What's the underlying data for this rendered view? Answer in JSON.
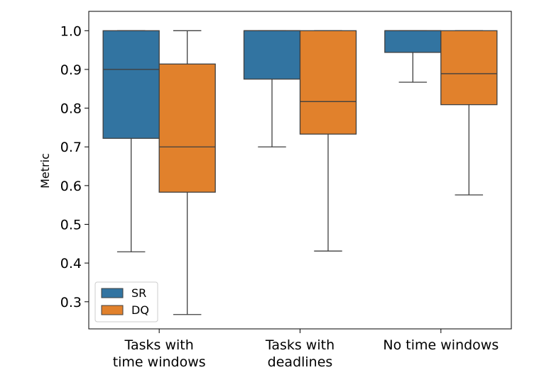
{
  "chart_data": {
    "type": "box",
    "ylabel": "Metric",
    "xlabel": "",
    "ylim": [
      0.23,
      1.05
    ],
    "yticks": [
      0.3,
      0.4,
      0.5,
      0.6,
      0.7,
      0.8,
      0.9,
      1.0
    ],
    "ytick_labels": [
      "0.3",
      "0.4",
      "0.5",
      "0.6",
      "0.7",
      "0.8",
      "0.9",
      "1.0"
    ],
    "grid": false,
    "legend_position": "lower-left",
    "categories": [
      {
        "label_lines": [
          "Tasks with",
          "time windows"
        ]
      },
      {
        "label_lines": [
          "Tasks with",
          "deadlines"
        ]
      },
      {
        "label_lines": [
          "No time windows"
        ]
      }
    ],
    "series": [
      {
        "name": "SR",
        "color": "#3274a1",
        "boxes": [
          {
            "whisker_low": 0.429,
            "q1": 0.722,
            "median": 0.9,
            "q3": 1.0,
            "whisker_high": 1.0
          },
          {
            "whisker_low": 0.7,
            "q1": 0.875,
            "median": 1.0,
            "q3": 1.0,
            "whisker_high": 1.0
          },
          {
            "whisker_low": 0.867,
            "q1": 0.944,
            "median": 1.0,
            "q3": 1.0,
            "whisker_high": 1.0
          }
        ]
      },
      {
        "name": "DQ",
        "color": "#e1812c",
        "boxes": [
          {
            "whisker_low": 0.267,
            "q1": 0.583,
            "median": 0.7,
            "q3": 0.914,
            "whisker_high": 1.0
          },
          {
            "whisker_low": 0.431,
            "q1": 0.733,
            "median": 0.817,
            "q3": 1.0,
            "whisker_high": 1.0
          },
          {
            "whisker_low": 0.576,
            "q1": 0.809,
            "median": 0.889,
            "q3": 1.0,
            "whisker_high": 1.0
          }
        ]
      }
    ]
  }
}
